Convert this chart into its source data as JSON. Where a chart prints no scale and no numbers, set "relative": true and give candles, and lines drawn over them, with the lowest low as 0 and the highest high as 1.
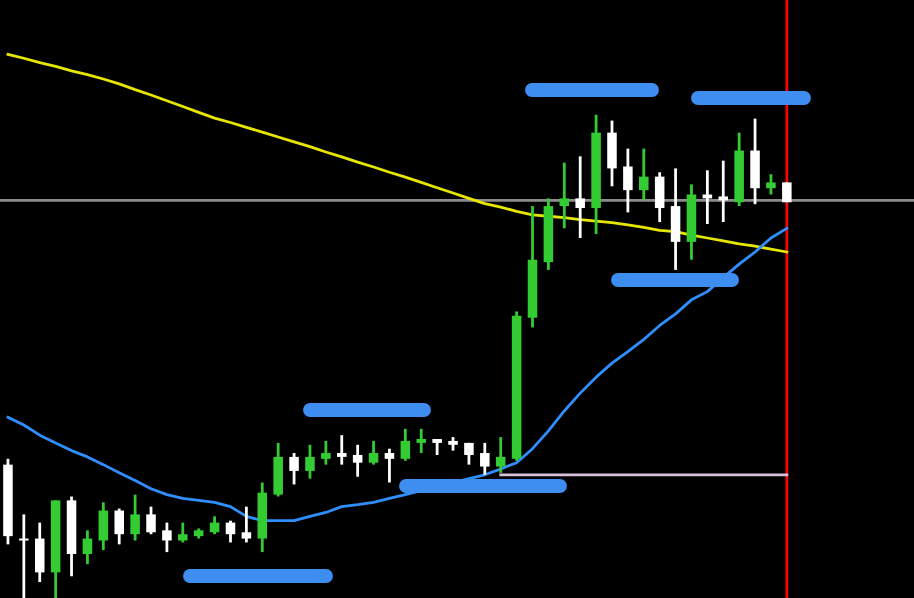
{
  "chart_data": {
    "type": "candlestick",
    "relative": true,
    "categories": [
      null,
      null,
      null,
      null,
      null,
      null,
      null,
      null,
      null,
      null,
      null,
      null,
      null,
      null,
      null,
      null,
      null,
      null,
      null,
      null,
      null,
      null,
      null,
      null,
      null,
      null,
      null,
      null,
      null,
      null,
      null,
      null,
      null,
      null,
      null,
      null,
      null,
      null,
      null,
      null,
      null,
      null,
      null,
      null,
      null,
      null,
      null,
      null,
      null,
      null
    ],
    "ohlc": [
      [
        0.276,
        0.288,
        0.111,
        0.128
      ],
      [
        0.123,
        0.173,
        0,
        0.119
      ],
      [
        0.123,
        0.156,
        0.033,
        0.053
      ],
      [
        0.053,
        0.202,
        0,
        0.202
      ],
      [
        0.202,
        0.21,
        0.045,
        0.091
      ],
      [
        0.091,
        0.14,
        0.07,
        0.123
      ],
      [
        0.119,
        0.198,
        0.099,
        0.181
      ],
      [
        0.181,
        0.185,
        0.111,
        0.132
      ],
      [
        0.132,
        0.214,
        0.119,
        0.173
      ],
      [
        0.173,
        0.189,
        0.132,
        0.136
      ],
      [
        0.14,
        0.156,
        0.095,
        0.119
      ],
      [
        0.119,
        0.156,
        0.115,
        0.132
      ],
      [
        0.128,
        0.144,
        0.123,
        0.14
      ],
      [
        0.136,
        0.169,
        0.132,
        0.156
      ],
      [
        0.156,
        0.16,
        0.115,
        0.132
      ],
      [
        0.136,
        0.189,
        0.115,
        0.123
      ],
      [
        0.123,
        0.239,
        0.095,
        0.218
      ],
      [
        0.214,
        0.321,
        0.21,
        0.292
      ],
      [
        0.292,
        0.3,
        0.235,
        0.263
      ],
      [
        0.263,
        0.317,
        0.247,
        0.292
      ],
      [
        0.288,
        0.325,
        0.276,
        0.3
      ],
      [
        0.3,
        0.337,
        0.276,
        0.292
      ],
      [
        0.296,
        0.317,
        0.251,
        0.28
      ],
      [
        0.28,
        0.325,
        0.276,
        0.3
      ],
      [
        0.3,
        0.309,
        0.239,
        0.288
      ],
      [
        0.288,
        0.35,
        0.284,
        0.325
      ],
      [
        0.321,
        0.35,
        0.3,
        0.329
      ],
      [
        0.329,
        0.329,
        0.296,
        0.321
      ],
      [
        0.325,
        0.333,
        0.305,
        0.317
      ],
      [
        0.321,
        0.321,
        0.276,
        0.296
      ],
      [
        0.3,
        0.321,
        0.255,
        0.272
      ],
      [
        0.272,
        0.333,
        0.259,
        0.292
      ],
      [
        0.288,
        0.593,
        0.284,
        0.584
      ],
      [
        0.58,
        0.811,
        0.56,
        0.7
      ],
      [
        0.695,
        0.827,
        0.679,
        0.811
      ],
      [
        0.811,
        0.901,
        0.765,
        0.827
      ],
      [
        0.827,
        0.914,
        0.745,
        0.807
      ],
      [
        0.807,
        1,
        0.753,
        0.963
      ],
      [
        0.963,
        0.988,
        0.852,
        0.889
      ],
      [
        0.893,
        0.93,
        0.798,
        0.844
      ],
      [
        0.844,
        0.93,
        0.823,
        0.872
      ],
      [
        0.872,
        0.881,
        0.778,
        0.807
      ],
      [
        0.811,
        0.889,
        0.679,
        0.737
      ],
      [
        0.737,
        0.856,
        0.7,
        0.835
      ],
      [
        0.835,
        0.885,
        0.774,
        0.827
      ],
      [
        0.831,
        0.905,
        0.778,
        0.823
      ],
      [
        0.819,
        0.963,
        0.811,
        0.926
      ],
      [
        0.926,
        0.992,
        0.815,
        0.848
      ],
      [
        0.848,
        0.877,
        0.835,
        0.86
      ],
      [
        0.86,
        0.86,
        0.819,
        0.819
      ]
    ],
    "colors": [
      "#ffffff",
      "#ffffff",
      "#ffffff",
      "#33cc33",
      "#ffffff",
      "#33cc33",
      "#33cc33",
      "#ffffff",
      "#33cc33",
      "#ffffff",
      "#ffffff",
      "#33cc33",
      "#33cc33",
      "#33cc33",
      "#ffffff",
      "#ffffff",
      "#33cc33",
      "#33cc33",
      "#ffffff",
      "#33cc33",
      "#33cc33",
      "#ffffff",
      "#ffffff",
      "#33cc33",
      "#ffffff",
      "#33cc33",
      "#33cc33",
      "#ffffff",
      "#ffffff",
      "#ffffff",
      "#ffffff",
      "#33cc33",
      "#33cc33",
      "#33cc33",
      "#33cc33",
      "#33cc33",
      "#ffffff",
      "#33cc33",
      "#ffffff",
      "#ffffff",
      "#33cc33",
      "#ffffff",
      "#ffffff",
      "#33cc33",
      "#ffffff",
      "#ffffff",
      "#33cc33",
      "#ffffff",
      "#33cc33",
      "#ffffff"
    ],
    "series": [
      {
        "type": "line",
        "color": "#e6e600",
        "values": [
          1.125,
          1.117,
          1.108,
          1.1,
          1.091,
          1.083,
          1.074,
          1.064,
          1.052,
          1.041,
          1.029,
          1.017,
          1.005,
          0.993,
          0.984,
          0.974,
          0.964,
          0.954,
          0.944,
          0.934,
          0.923,
          0.913,
          0.902,
          0.892,
          0.881,
          0.871,
          0.86,
          0.849,
          0.838,
          0.827,
          0.816,
          0.809,
          0.8,
          0.793,
          0.79,
          0.787,
          0.783,
          0.78,
          0.777,
          0.772,
          0.767,
          0.761,
          0.758,
          0.751,
          0.745,
          0.739,
          0.733,
          0.728,
          0.722,
          0.716
        ]
      },
      {
        "type": "line",
        "color": "#2f8fff",
        "values": [
          0.374,
          0.358,
          0.337,
          0.321,
          0.305,
          0.292,
          0.276,
          0.259,
          0.243,
          0.226,
          0.214,
          0.206,
          0.202,
          0.198,
          0.189,
          0.169,
          0.16,
          0.16,
          0.16,
          0.169,
          0.177,
          0.189,
          0.193,
          0.198,
          0.206,
          0.214,
          0.222,
          0.23,
          0.239,
          0.247,
          0.255,
          0.267,
          0.28,
          0.309,
          0.346,
          0.387,
          0.424,
          0.457,
          0.486,
          0.51,
          0.535,
          0.564,
          0.588,
          0.617,
          0.634,
          0.663,
          0.691,
          0.716,
          0.745,
          0.765
        ]
      },
      {
        "type": "line",
        "color": "#d8c0d8",
        "values": [
          null,
          null,
          null,
          null,
          null,
          null,
          null,
          null,
          null,
          null,
          null,
          null,
          null,
          null,
          null,
          null,
          null,
          null,
          null,
          null,
          null,
          null,
          null,
          null,
          null,
          null,
          null,
          null,
          null,
          null,
          null,
          0.255,
          0.255,
          0.255,
          0.255,
          0.255,
          0.255,
          0.255,
          0.255,
          0.255,
          0.255,
          0.255,
          0.255,
          0.255,
          0.255,
          0.255,
          0.255,
          0.255,
          0.255,
          0.255
        ]
      }
    ],
    "ref_lines": [
      {
        "axis": "y",
        "value": 0.823,
        "color": "#8c8c8c"
      }
    ]
  }
}
